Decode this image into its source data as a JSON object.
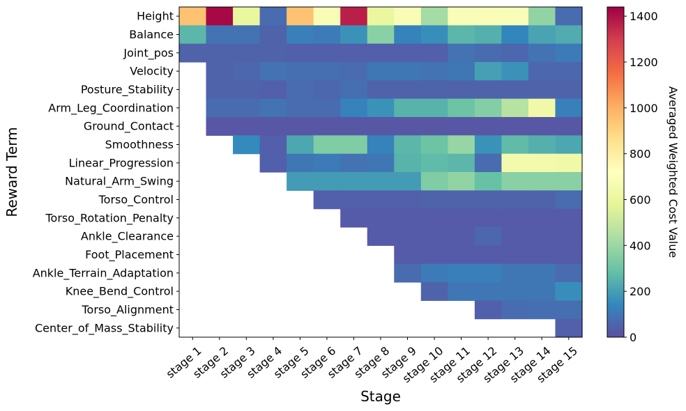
{
  "chart_data": {
    "type": "heatmap",
    "title": "",
    "xlabel": "Stage",
    "ylabel": "Reward Term",
    "colorbar_label": "Averaged Weighted Cost Value",
    "colormap": "Spectral_r",
    "vmin": 0,
    "vmax": 1440,
    "colorbar_ticks": [
      0,
      200,
      400,
      600,
      800,
      1000,
      1200,
      1400
    ],
    "x_categories": [
      "stage 1",
      "stage 2",
      "stage 3",
      "stage 4",
      "stage 5",
      "stage 6",
      "stage 7",
      "stage 8",
      "stage 9",
      "stage 10",
      "stage 11",
      "stage 12",
      "stage 13",
      "stage 14",
      "stage 15"
    ],
    "y_categories": [
      "Height",
      "Balance",
      "Joint_pos",
      "Velocity",
      "Posture_Stability",
      "Arm_Leg_Coordination",
      "Ground_Contact",
      "Smoothness",
      "Linear_Progression",
      "Natural_Arm_Swing",
      "Torso_Control",
      "Torso_Rotation_Penalty",
      "Ankle_Clearance",
      "Foot_Placement",
      "Ankle_Terrain_Adaptation",
      "Knee_Bend_Control",
      "Torso_Alignment",
      "Center_of_Mass_Stability"
    ],
    "values": [
      [
        950,
        1420,
        600,
        70,
        950,
        680,
        1370,
        600,
        680,
        420,
        690,
        690,
        690,
        380,
        70
      ],
      [
        260,
        90,
        90,
        50,
        120,
        110,
        170,
        360,
        130,
        160,
        260,
        240,
        140,
        210,
        230
      ],
      [
        50,
        50,
        50,
        50,
        40,
        40,
        40,
        40,
        40,
        40,
        90,
        70,
        60,
        90,
        110
      ],
      [
        null,
        50,
        60,
        90,
        80,
        80,
        70,
        100,
        100,
        90,
        100,
        200,
        170,
        60,
        60
      ],
      [
        null,
        50,
        50,
        40,
        70,
        60,
        80,
        50,
        50,
        50,
        50,
        50,
        50,
        50,
        50
      ],
      [
        null,
        70,
        70,
        90,
        70,
        70,
        130,
        170,
        250,
        250,
        300,
        350,
        460,
        640,
        120
      ],
      [
        null,
        20,
        20,
        20,
        20,
        20,
        20,
        20,
        20,
        20,
        20,
        20,
        20,
        20,
        20
      ],
      [
        null,
        null,
        150,
        40,
        220,
        340,
        340,
        130,
        260,
        300,
        390,
        170,
        270,
        240,
        220
      ],
      [
        null,
        null,
        null,
        40,
        100,
        110,
        90,
        100,
        250,
        270,
        260,
        70,
        650,
        650,
        630
      ],
      [
        null,
        null,
        null,
        null,
        190,
        190,
        190,
        190,
        190,
        340,
        380,
        290,
        360,
        360,
        360
      ],
      [
        null,
        null,
        null,
        null,
        null,
        40,
        40,
        40,
        40,
        50,
        50,
        50,
        50,
        50,
        70
      ],
      [
        null,
        null,
        null,
        null,
        null,
        null,
        30,
        30,
        30,
        30,
        30,
        30,
        30,
        30,
        30
      ],
      [
        null,
        null,
        null,
        null,
        null,
        null,
        null,
        30,
        30,
        30,
        30,
        60,
        30,
        30,
        30
      ],
      [
        null,
        null,
        null,
        null,
        null,
        null,
        null,
        null,
        30,
        30,
        30,
        30,
        30,
        30,
        30
      ],
      [
        null,
        null,
        null,
        null,
        null,
        null,
        null,
        null,
        70,
        110,
        120,
        120,
        100,
        100,
        70
      ],
      [
        null,
        null,
        null,
        null,
        null,
        null,
        null,
        null,
        null,
        50,
        100,
        100,
        100,
        100,
        160
      ],
      [
        null,
        null,
        null,
        null,
        null,
        null,
        null,
        null,
        null,
        null,
        null,
        40,
        70,
        80,
        80
      ],
      [
        null,
        null,
        null,
        null,
        null,
        null,
        null,
        null,
        null,
        null,
        null,
        null,
        null,
        null,
        40
      ]
    ]
  }
}
